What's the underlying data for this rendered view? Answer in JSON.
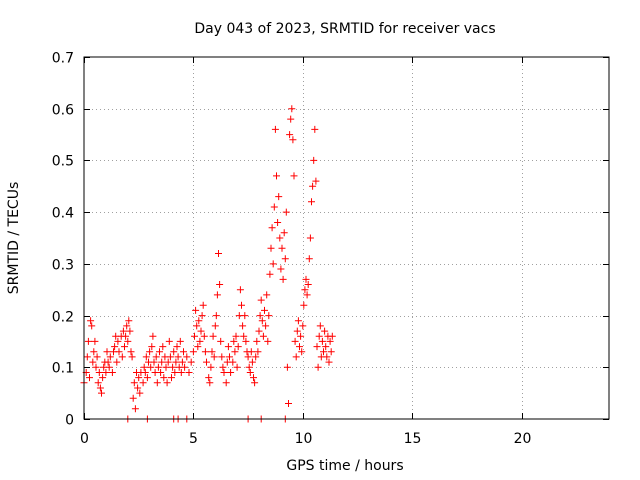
{
  "chart_data": {
    "type": "scatter",
    "title": "Day 043 of 2023, SRMTID for receiver vacs",
    "xlabel": "GPS time / hours",
    "ylabel": "SRMTID / TECUs",
    "xlim": [
      0,
      24
    ],
    "ylim": [
      0,
      0.7
    ],
    "x_ticks": [
      0,
      5,
      10,
      15,
      20
    ],
    "y_ticks": [
      0,
      0.1,
      0.2,
      0.3,
      0.4,
      0.5,
      0.6,
      0.7
    ],
    "x_tick_labels": [
      "0",
      "5",
      "10",
      "15",
      "20"
    ],
    "y_tick_labels": [
      "0",
      "0.1",
      "0.2",
      "0.3",
      "0.4",
      "0.5",
      "0.6",
      "0.7"
    ],
    "grid": true,
    "marker": "+",
    "colors": {
      "series": "#ff0000",
      "axes": "#000000",
      "grid": "#a0a0a0"
    },
    "series": [
      {
        "name": "vacs",
        "points": [
          [
            0.0,
            0.07
          ],
          [
            0.1,
            0.09
          ],
          [
            0.15,
            0.12
          ],
          [
            0.2,
            0.15
          ],
          [
            0.25,
            0.08
          ],
          [
            0.3,
            0.19
          ],
          [
            0.35,
            0.18
          ],
          [
            0.4,
            0.11
          ],
          [
            0.45,
            0.13
          ],
          [
            0.5,
            0.15
          ],
          [
            0.55,
            0.1
          ],
          [
            0.6,
            0.12
          ],
          [
            0.65,
            0.07
          ],
          [
            0.7,
            0.09
          ],
          [
            0.75,
            0.06
          ],
          [
            0.8,
            0.05
          ],
          [
            0.85,
            0.08
          ],
          [
            0.9,
            0.1
          ],
          [
            0.95,
            0.11
          ],
          [
            1.0,
            0.09
          ],
          [
            1.05,
            0.13
          ],
          [
            1.1,
            0.11
          ],
          [
            1.15,
            0.1
          ],
          [
            1.2,
            0.12
          ],
          [
            1.3,
            0.09
          ],
          [
            1.35,
            0.13
          ],
          [
            1.4,
            0.14
          ],
          [
            1.45,
            0.16
          ],
          [
            1.5,
            0.11
          ],
          [
            1.55,
            0.15
          ],
          [
            1.6,
            0.13
          ],
          [
            1.7,
            0.16
          ],
          [
            1.75,
            0.12
          ],
          [
            1.8,
            0.17
          ],
          [
            1.85,
            0.14
          ],
          [
            1.9,
            0.16
          ],
          [
            1.95,
            0.18
          ],
          [
            2.0,
            0.15
          ],
          [
            2.05,
            0.19
          ],
          [
            2.1,
            0.17
          ],
          [
            2.15,
            0.13
          ],
          [
            2.2,
            0.12
          ],
          [
            2.25,
            0.04
          ],
          [
            2.3,
            0.07
          ],
          [
            2.35,
            0.02
          ],
          [
            2.4,
            0.09
          ],
          [
            2.45,
            0.06
          ],
          [
            2.5,
            0.08
          ],
          [
            2.55,
            0.05
          ],
          [
            2.6,
            0.09
          ],
          [
            2.7,
            0.07
          ],
          [
            2.75,
            0.1
          ],
          [
            2.8,
            0.09
          ],
          [
            2.85,
            0.12
          ],
          [
            2.9,
            0.08
          ],
          [
            2.95,
            0.11
          ],
          [
            3.0,
            0.13
          ],
          [
            3.05,
            0.1
          ],
          [
            3.1,
            0.14
          ],
          [
            3.15,
            0.16
          ],
          [
            3.2,
            0.11
          ],
          [
            3.25,
            0.09
          ],
          [
            3.3,
            0.12
          ],
          [
            3.35,
            0.07
          ],
          [
            3.4,
            0.1
          ],
          [
            3.45,
            0.13
          ],
          [
            3.5,
            0.09
          ],
          [
            3.55,
            0.11
          ],
          [
            3.6,
            0.14
          ],
          [
            3.65,
            0.08
          ],
          [
            3.7,
            0.12
          ],
          [
            3.75,
            0.1
          ],
          [
            3.8,
            0.07
          ],
          [
            3.85,
            0.11
          ],
          [
            3.9,
            0.15
          ],
          [
            3.95,
            0.12
          ],
          [
            4.0,
            0.08
          ],
          [
            4.05,
            0.1
          ],
          [
            4.1,
            0.13
          ],
          [
            4.15,
            0.09
          ],
          [
            4.2,
            0.11
          ],
          [
            4.25,
            0.14
          ],
          [
            4.3,
            0.12
          ],
          [
            4.35,
            0.1
          ],
          [
            4.4,
            0.15
          ],
          [
            4.45,
            0.09
          ],
          [
            4.5,
            0.11
          ],
          [
            4.55,
            0.13
          ],
          [
            4.6,
            0.1
          ],
          [
            4.7,
            0.12
          ],
          [
            4.8,
            0.09
          ],
          [
            4.9,
            0.11
          ],
          [
            5.0,
            0.13
          ],
          [
            5.05,
            0.16
          ],
          [
            5.1,
            0.21
          ],
          [
            5.15,
            0.18
          ],
          [
            5.2,
            0.14
          ],
          [
            5.25,
            0.19
          ],
          [
            5.3,
            0.15
          ],
          [
            5.35,
            0.17
          ],
          [
            5.4,
            0.2
          ],
          [
            5.45,
            0.22
          ],
          [
            5.5,
            0.16
          ],
          [
            5.55,
            0.13
          ],
          [
            5.6,
            0.11
          ],
          [
            5.7,
            0.08
          ],
          [
            5.75,
            0.07
          ],
          [
            5.8,
            0.1
          ],
          [
            5.85,
            0.13
          ],
          [
            5.9,
            0.16
          ],
          [
            5.95,
            0.12
          ],
          [
            6.0,
            0.18
          ],
          [
            6.05,
            0.2
          ],
          [
            6.1,
            0.24
          ],
          [
            6.15,
            0.32
          ],
          [
            6.2,
            0.26
          ],
          [
            6.25,
            0.15
          ],
          [
            6.3,
            0.12
          ],
          [
            6.35,
            0.1
          ],
          [
            6.4,
            0.09
          ],
          [
            6.5,
            0.07
          ],
          [
            6.55,
            0.11
          ],
          [
            6.6,
            0.14
          ],
          [
            6.65,
            0.12
          ],
          [
            6.7,
            0.09
          ],
          [
            6.8,
            0.11
          ],
          [
            6.85,
            0.15
          ],
          [
            6.9,
            0.13
          ],
          [
            6.95,
            0.16
          ],
          [
            7.0,
            0.1
          ],
          [
            7.05,
            0.14
          ],
          [
            7.1,
            0.2
          ],
          [
            7.15,
            0.25
          ],
          [
            7.2,
            0.22
          ],
          [
            7.25,
            0.18
          ],
          [
            7.3,
            0.16
          ],
          [
            7.35,
            0.2
          ],
          [
            7.4,
            0.15
          ],
          [
            7.45,
            0.13
          ],
          [
            7.5,
            0.12
          ],
          [
            7.55,
            0.1
          ],
          [
            7.6,
            0.09
          ],
          [
            7.65,
            0.13
          ],
          [
            7.7,
            0.11
          ],
          [
            7.75,
            0.08
          ],
          [
            7.8,
            0.07
          ],
          [
            7.85,
            0.12
          ],
          [
            7.9,
            0.15
          ],
          [
            7.95,
            0.13
          ],
          [
            8.0,
            0.17
          ],
          [
            8.05,
            0.2
          ],
          [
            8.1,
            0.23
          ],
          [
            8.15,
            0.19
          ],
          [
            8.2,
            0.16
          ],
          [
            8.25,
            0.21
          ],
          [
            8.3,
            0.18
          ],
          [
            8.35,
            0.24
          ],
          [
            8.4,
            0.15
          ],
          [
            8.45,
            0.2
          ],
          [
            8.5,
            0.28
          ],
          [
            8.55,
            0.33
          ],
          [
            8.6,
            0.37
          ],
          [
            8.65,
            0.3
          ],
          [
            8.7,
            0.41
          ],
          [
            8.75,
            0.56
          ],
          [
            8.8,
            0.47
          ],
          [
            8.85,
            0.38
          ],
          [
            8.9,
            0.43
          ],
          [
            8.95,
            0.35
          ],
          [
            9.0,
            0.29
          ],
          [
            9.05,
            0.33
          ],
          [
            9.1,
            0.27
          ],
          [
            9.15,
            0.36
          ],
          [
            9.2,
            0.31
          ],
          [
            9.25,
            0.4
          ],
          [
            9.3,
            0.1
          ],
          [
            9.35,
            0.03
          ],
          [
            9.4,
            0.55
          ],
          [
            9.45,
            0.58
          ],
          [
            9.5,
            0.6
          ],
          [
            9.55,
            0.54
          ],
          [
            9.6,
            0.47
          ],
          [
            9.65,
            0.15
          ],
          [
            9.7,
            0.12
          ],
          [
            9.75,
            0.17
          ],
          [
            9.8,
            0.19
          ],
          [
            9.85,
            0.14
          ],
          [
            9.9,
            0.16
          ],
          [
            9.95,
            0.13
          ],
          [
            10.0,
            0.18
          ],
          [
            10.05,
            0.22
          ],
          [
            10.1,
            0.25
          ],
          [
            10.15,
            0.27
          ],
          [
            10.2,
            0.24
          ],
          [
            10.25,
            0.26
          ],
          [
            10.3,
            0.31
          ],
          [
            10.35,
            0.35
          ],
          [
            10.4,
            0.42
          ],
          [
            10.45,
            0.45
          ],
          [
            10.5,
            0.5
          ],
          [
            10.55,
            0.56
          ],
          [
            10.6,
            0.46
          ],
          [
            10.65,
            0.14
          ],
          [
            10.7,
            0.1
          ],
          [
            10.75,
            0.16
          ],
          [
            10.8,
            0.18
          ],
          [
            10.85,
            0.12
          ],
          [
            10.9,
            0.15
          ],
          [
            10.95,
            0.13
          ],
          [
            11.0,
            0.17
          ],
          [
            11.05,
            0.14
          ],
          [
            11.1,
            0.12
          ],
          [
            11.15,
            0.16
          ],
          [
            11.2,
            0.11
          ],
          [
            11.25,
            0.15
          ],
          [
            11.3,
            0.13
          ],
          [
            11.35,
            0.16
          ],
          [
            2.0,
            0.0
          ],
          [
            2.9,
            0.0
          ],
          [
            4.1,
            0.0
          ],
          [
            4.3,
            0.0
          ],
          [
            4.7,
            0.0
          ],
          [
            7.5,
            0.0
          ],
          [
            8.1,
            0.0
          ],
          [
            9.2,
            0.0
          ]
        ]
      }
    ]
  }
}
